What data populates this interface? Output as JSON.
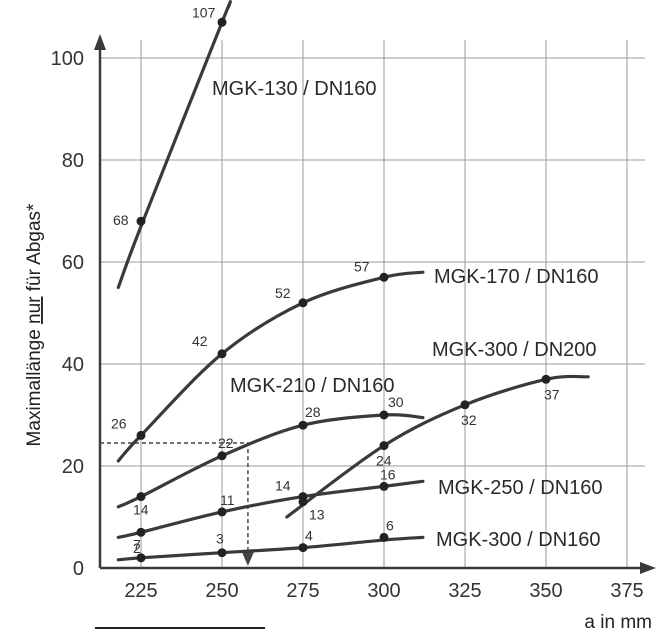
{
  "chart_data": {
    "type": "line",
    "ylabel_parts": [
      "Maximallänge ",
      "nur",
      " für Abgas*"
    ],
    "xlabel": "a in mm",
    "xlim": [
      212,
      378
    ],
    "ylim": [
      0,
      108
    ],
    "x_ticks": [
      225,
      250,
      275,
      300,
      325,
      350,
      375
    ],
    "y_ticks": [
      0,
      20,
      40,
      60,
      80,
      100
    ],
    "grid": true,
    "series": [
      {
        "name": "MGK-130 / DN160",
        "points": [
          [
            225,
            68
          ],
          [
            250,
            107
          ]
        ],
        "labels": [
          "68",
          "107"
        ],
        "curve": [
          [
            218,
            55
          ],
          [
            225,
            67
          ],
          [
            250,
            107
          ],
          [
            252,
            110
          ]
        ]
      },
      {
        "name": "MGK-170 / DN160",
        "points": [
          [
            225,
            26
          ],
          [
            250,
            42
          ],
          [
            275,
            52
          ],
          [
            300,
            57
          ]
        ],
        "labels": [
          "26",
          "42",
          "52",
          "57"
        ],
        "curve": [
          [
            218,
            21
          ],
          [
            225,
            26
          ],
          [
            250,
            42
          ],
          [
            275,
            52
          ],
          [
            300,
            57
          ],
          [
            312,
            58
          ]
        ]
      },
      {
        "name": "MGK-300 / DN200",
        "points": [
          [
            300,
            24
          ],
          [
            325,
            32
          ],
          [
            350,
            37
          ]
        ],
        "labels": [
          "24",
          "32",
          "37"
        ],
        "curve": [
          [
            270,
            10
          ],
          [
            300,
            24
          ],
          [
            325,
            32
          ],
          [
            350,
            37
          ],
          [
            363,
            37.5
          ]
        ]
      },
      {
        "name": "MGK-210 / DN160",
        "points": [
          [
            225,
            14
          ],
          [
            250,
            22
          ],
          [
            275,
            28
          ],
          [
            300,
            30
          ]
        ],
        "labels": [
          "14",
          "22",
          "28",
          "30"
        ],
        "curve": [
          [
            218,
            12
          ],
          [
            225,
            14
          ],
          [
            250,
            22
          ],
          [
            275,
            28
          ],
          [
            300,
            30
          ],
          [
            312,
            29.5
          ]
        ]
      },
      {
        "name": "MGK-250 / DN160",
        "points": [
          [
            225,
            7
          ],
          [
            250,
            11
          ],
          [
            275,
            14
          ],
          [
            300,
            16
          ]
        ],
        "labels": [
          "7",
          "11",
          "14",
          "16"
        ],
        "curve": [
          [
            218,
            6
          ],
          [
            225,
            7
          ],
          [
            250,
            11
          ],
          [
            275,
            14
          ],
          [
            300,
            16
          ],
          [
            312,
            17
          ]
        ]
      },
      {
        "name": "MGK-300 / DN160",
        "points": [
          [
            225,
            2
          ],
          [
            250,
            3
          ],
          [
            275,
            4
          ],
          [
            300,
            6
          ]
        ],
        "labels": [
          "2",
          "3",
          "4",
          "6"
        ],
        "curve": [
          [
            218,
            1.6
          ],
          [
            225,
            2
          ],
          [
            250,
            3
          ],
          [
            275,
            4
          ],
          [
            300,
            5.5
          ],
          [
            312,
            6
          ]
        ]
      }
    ],
    "extra_points": [
      {
        "x": 275,
        "y": 13,
        "label": "13"
      }
    ],
    "guide": {
      "x": 258,
      "y": 24.5
    }
  }
}
